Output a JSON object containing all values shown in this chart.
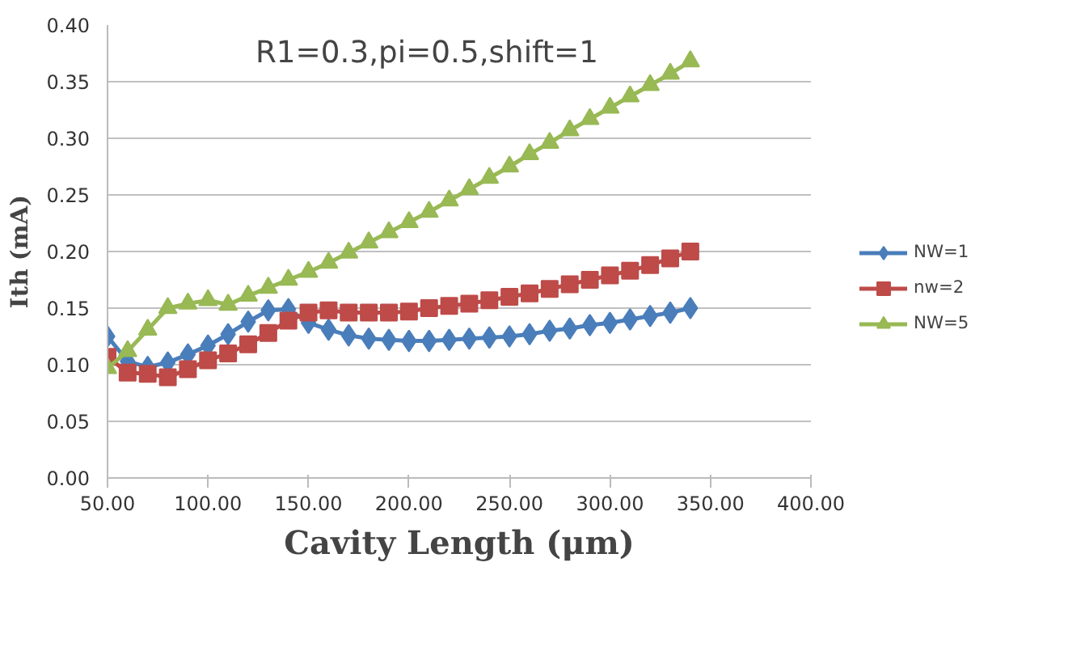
{
  "chart_data": {
    "type": "line",
    "title": "R1=0.3,pi=0.5,shift=1",
    "xlabel": "Cavity Length (μm)",
    "ylabel": "Ith (mA)",
    "x": [
      50,
      60,
      70,
      80,
      90,
      100,
      110,
      120,
      130,
      140,
      150,
      160,
      170,
      180,
      190,
      200,
      210,
      220,
      230,
      240,
      250,
      260,
      270,
      280,
      290,
      300,
      310,
      320,
      330,
      340
    ],
    "series": [
      {
        "name": "NW=1",
        "color": "#4a7ebb",
        "marker": "diamond",
        "values": [
          0.125,
          0.103,
          0.098,
          0.102,
          0.109,
          0.117,
          0.127,
          0.138,
          0.148,
          0.149,
          0.137,
          0.131,
          0.126,
          0.123,
          0.122,
          0.121,
          0.121,
          0.122,
          0.123,
          0.124,
          0.125,
          0.127,
          0.13,
          0.132,
          0.135,
          0.137,
          0.14,
          0.143,
          0.146,
          0.15
        ]
      },
      {
        "name": "nw=2",
        "color": "#be4b48",
        "marker": "square",
        "values": [
          0.107,
          0.093,
          0.092,
          0.089,
          0.096,
          0.104,
          0.11,
          0.118,
          0.128,
          0.139,
          0.146,
          0.148,
          0.146,
          0.146,
          0.146,
          0.147,
          0.15,
          0.152,
          0.154,
          0.157,
          0.16,
          0.163,
          0.167,
          0.171,
          0.175,
          0.179,
          0.183,
          0.188,
          0.194,
          0.2
        ]
      },
      {
        "name": "NW=5",
        "color": "#98b954",
        "marker": "triangle",
        "values": [
          0.097,
          0.112,
          0.131,
          0.15,
          0.154,
          0.157,
          0.153,
          0.161,
          0.168,
          0.175,
          0.182,
          0.19,
          0.199,
          0.208,
          0.217,
          0.226,
          0.235,
          0.245,
          0.255,
          0.265,
          0.275,
          0.286,
          0.296,
          0.307,
          0.317,
          0.327,
          0.337,
          0.347,
          0.357,
          0.368
        ]
      }
    ],
    "xlim": [
      50,
      400
    ],
    "xticks": [
      {
        "value": 50,
        "label": "50.00"
      },
      {
        "value": 100,
        "label": "100.00"
      },
      {
        "value": 150,
        "label": "150.00"
      },
      {
        "value": 200,
        "label": "200.00"
      },
      {
        "value": 250,
        "label": "250.00"
      },
      {
        "value": 300,
        "label": "300.00"
      },
      {
        "value": 350,
        "label": "350.00"
      },
      {
        "value": 400,
        "label": "400.00"
      }
    ],
    "ylim": [
      0,
      0.4
    ],
    "yticks": [
      {
        "value": 0,
        "label": "0.00"
      },
      {
        "value": 0.05,
        "label": "0.05"
      },
      {
        "value": 0.1,
        "label": "0.10"
      },
      {
        "value": 0.15,
        "label": "0.15"
      },
      {
        "value": 0.2,
        "label": "0.20"
      },
      {
        "value": 0.25,
        "label": "0.25"
      },
      {
        "value": 0.3,
        "label": "0.30"
      },
      {
        "value": 0.35,
        "label": "0.35"
      },
      {
        "value": 0.4,
        "label": "0.40"
      }
    ],
    "grid": "y",
    "legend": "right",
    "line_style": "solid"
  }
}
